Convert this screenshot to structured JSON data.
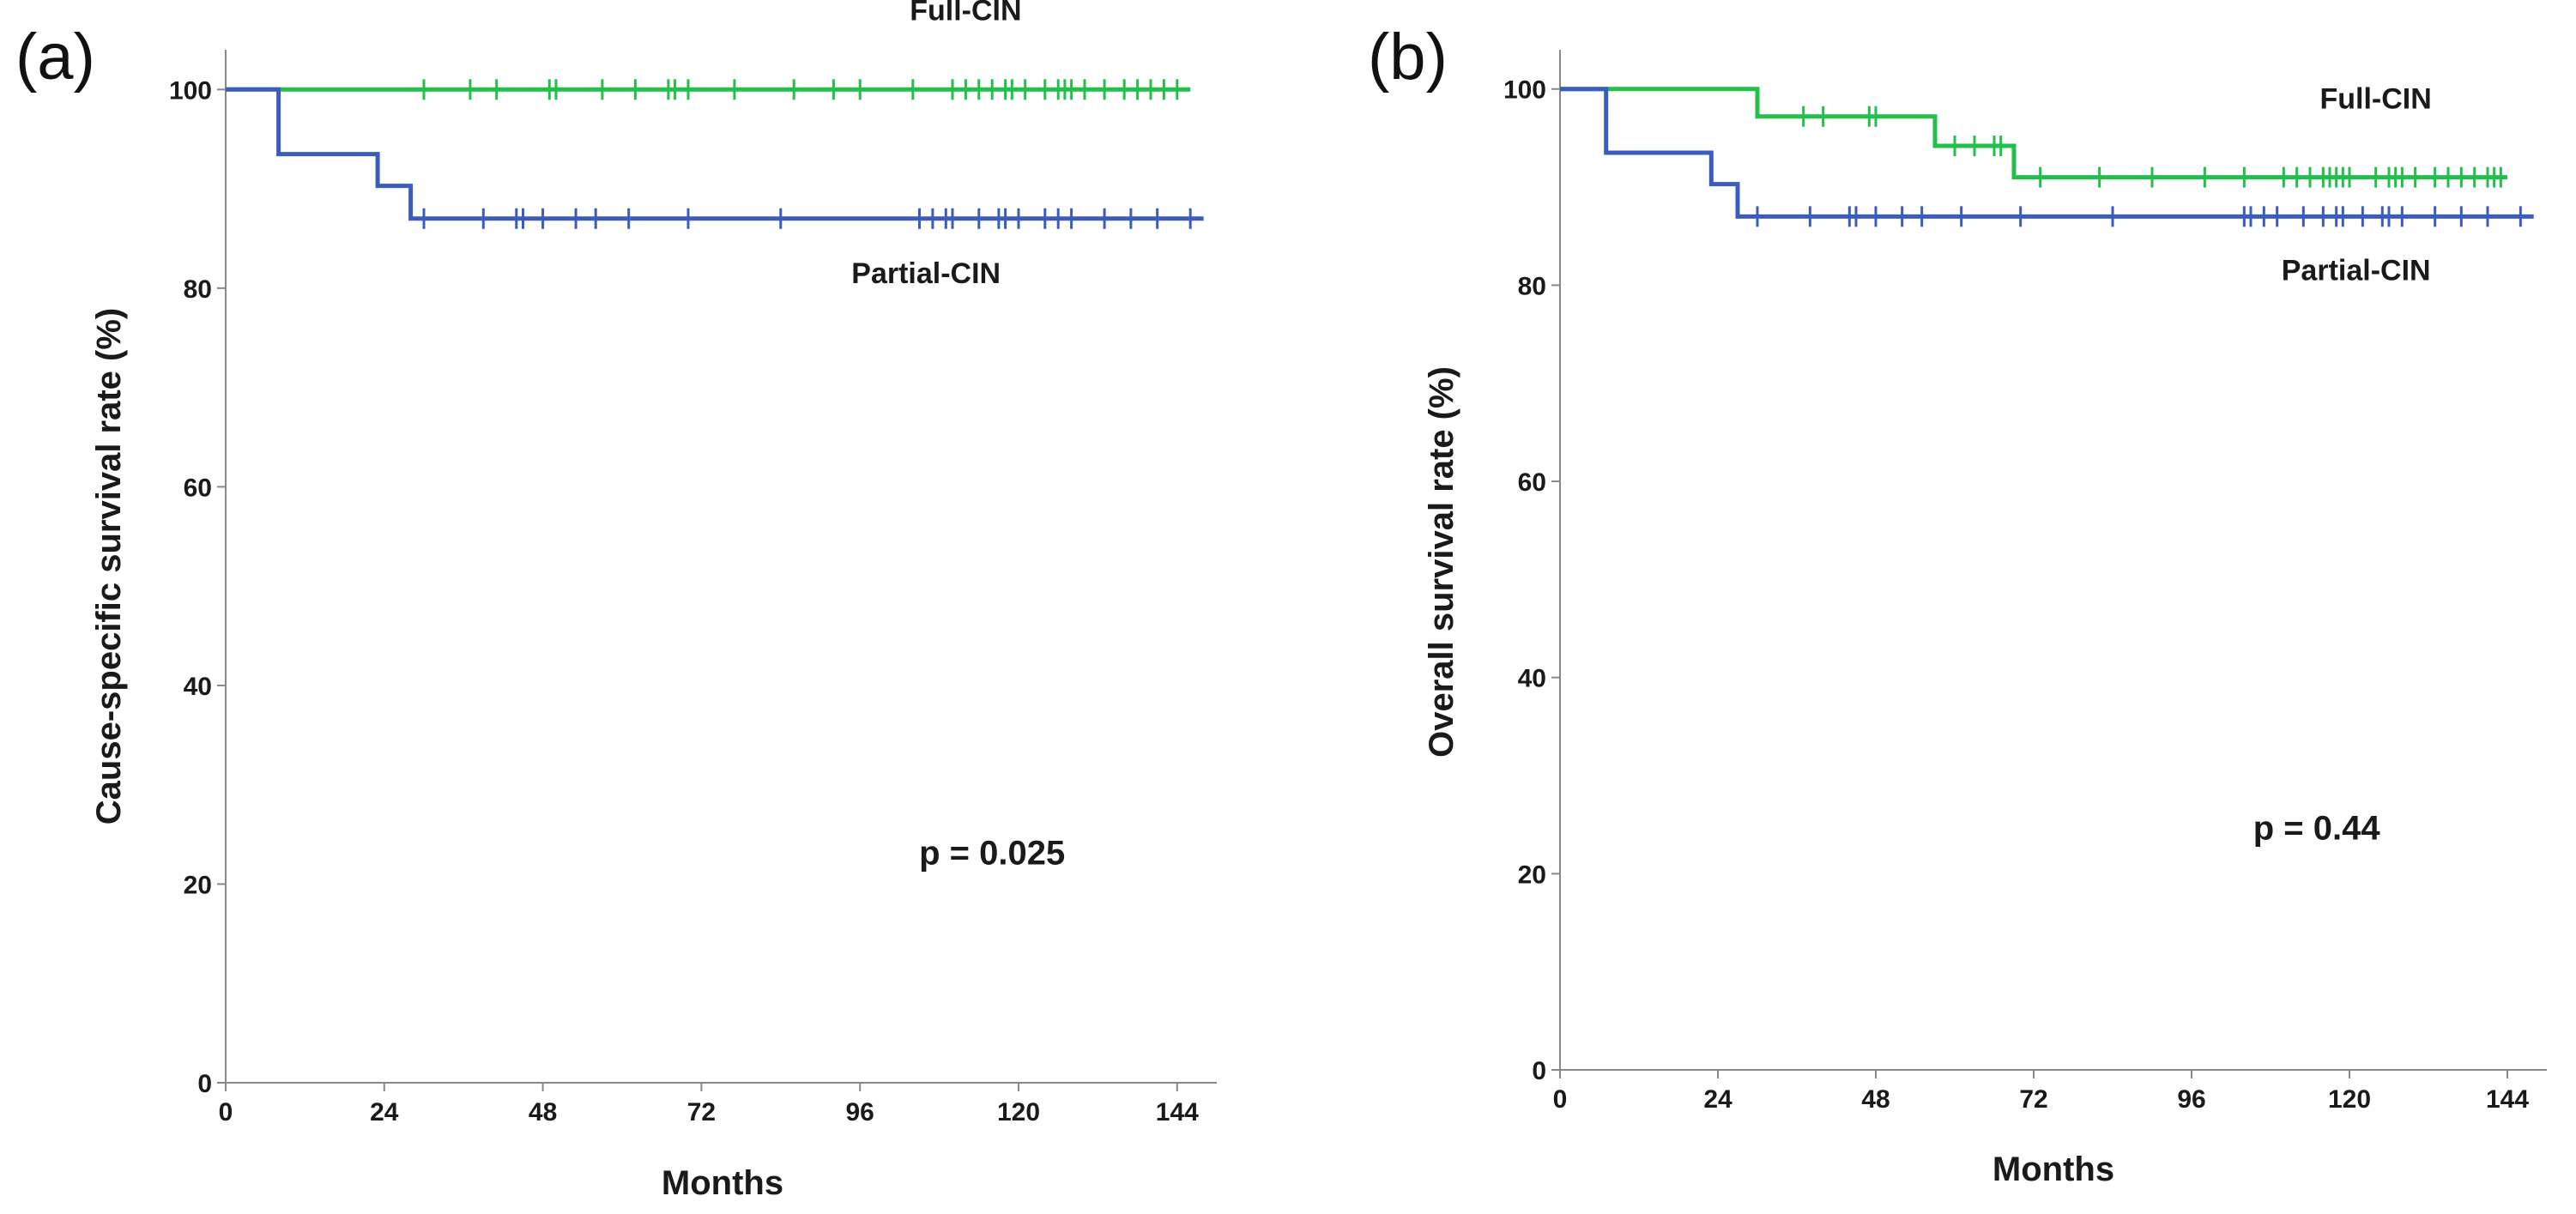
{
  "colors": {
    "full": "#22c04b",
    "partial": "#3a5cbf",
    "axis": "#888888",
    "text": "#1a1a1a"
  },
  "chart_data": [
    {
      "type": "line",
      "step": true,
      "panel_label": "(a)",
      "xlabel": "Months",
      "ylabel": "Cause-specific survival rate (%)",
      "xlim": [
        0,
        150
      ],
      "ylim": [
        0,
        104
      ],
      "xticks": [
        0,
        24,
        48,
        72,
        96,
        120,
        144
      ],
      "yticks": [
        0,
        20,
        40,
        60,
        80,
        100
      ],
      "pvalue": "p = 0.025",
      "series": [
        {
          "name": "Full-CIN",
          "color_key": "full",
          "steps": [
            [
              0,
              100
            ],
            [
              146,
              100
            ]
          ],
          "censored": [
            30,
            37,
            41,
            49,
            50,
            57,
            62,
            67,
            68,
            70,
            77,
            86,
            92,
            96,
            104,
            110,
            112,
            114,
            116,
            118,
            119,
            121,
            124,
            126,
            127,
            128,
            130,
            133,
            136,
            138,
            140,
            142,
            144
          ]
        },
        {
          "name": "Partial-CIN",
          "color_key": "partial",
          "steps": [
            [
              0,
              100
            ],
            [
              8,
              100
            ],
            [
              8,
              93.5
            ],
            [
              23,
              93.5
            ],
            [
              23,
              90.3
            ],
            [
              28,
              90.3
            ],
            [
              28,
              87
            ],
            [
              148,
              87
            ]
          ],
          "censored": [
            30,
            39,
            44,
            45,
            48,
            53,
            56,
            61,
            70,
            84,
            105,
            107,
            109,
            110,
            114,
            117,
            118,
            120,
            124,
            126,
            128,
            133,
            137,
            141,
            146
          ]
        }
      ],
      "series_labels": [
        {
          "text": "Full-CIN",
          "x": 112,
          "y": 107
        },
        {
          "text": "Partial-CIN",
          "x": 106,
          "y": 80.5
        }
      ],
      "pvalue_at": {
        "x": 116,
        "y": 22
      }
    },
    {
      "type": "line",
      "step": true,
      "panel_label": "(b)",
      "xlabel": "Months",
      "ylabel": "Overall survival rate (%)",
      "xlim": [
        0,
        150
      ],
      "ylim": [
        0,
        104
      ],
      "xticks": [
        0,
        24,
        48,
        72,
        96,
        120,
        144
      ],
      "yticks": [
        0,
        20,
        40,
        60,
        80,
        100
      ],
      "pvalue": "p = 0.44",
      "series": [
        {
          "name": "Full-CIN",
          "color_key": "full",
          "steps": [
            [
              0,
              100
            ],
            [
              30,
              100
            ],
            [
              30,
              97.2
            ],
            [
              57,
              97.2
            ],
            [
              57,
              94.2
            ],
            [
              69,
              94.2
            ],
            [
              69,
              91
            ],
            [
              144,
              91
            ]
          ],
          "censored": [
            37,
            40,
            47,
            48,
            60,
            63,
            66,
            67,
            73,
            82,
            90,
            98,
            104,
            110,
            112,
            114,
            116,
            117,
            118,
            119,
            120,
            124,
            126,
            127,
            128,
            130,
            133,
            135,
            137,
            139,
            141,
            142,
            143
          ]
        },
        {
          "name": "Partial-CIN",
          "color_key": "partial",
          "steps": [
            [
              0,
              100
            ],
            [
              7,
              100
            ],
            [
              7,
              93.5
            ],
            [
              23,
              93.5
            ],
            [
              23,
              90.3
            ],
            [
              27,
              90.3
            ],
            [
              27,
              87
            ],
            [
              148,
              87
            ]
          ],
          "censored": [
            30,
            38,
            44,
            45,
            48,
            52,
            55,
            61,
            70,
            84,
            104,
            105,
            107,
            109,
            113,
            116,
            118,
            119,
            122,
            125,
            126,
            128,
            133,
            137,
            141,
            146
          ]
        }
      ],
      "series_labels": [
        {
          "text": "Full-CIN",
          "x": 124,
          "y": 98
        },
        {
          "text": "Partial-CIN",
          "x": 121,
          "y": 80.5
        }
      ],
      "pvalue_at": {
        "x": 115,
        "y": 23.5
      }
    }
  ]
}
